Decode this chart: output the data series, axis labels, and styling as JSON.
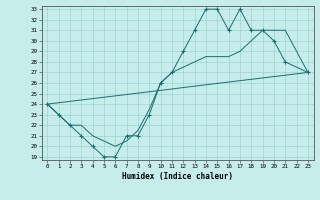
{
  "title": "",
  "xlabel": "Humidex (Indice chaleur)",
  "x_values": [
    0,
    1,
    2,
    3,
    4,
    5,
    6,
    7,
    8,
    9,
    10,
    11,
    12,
    13,
    14,
    15,
    16,
    17,
    18,
    19,
    20,
    21,
    22,
    23
  ],
  "y_main": [
    24,
    23,
    22,
    21,
    20,
    19,
    19,
    21,
    21,
    23,
    26,
    27,
    29,
    31,
    33,
    33,
    31,
    33,
    31,
    31,
    30,
    28,
    null,
    27
  ],
  "y_smooth": [
    24,
    23,
    22,
    22,
    21,
    20.5,
    20,
    20.5,
    21.5,
    23.5,
    26,
    27,
    27.5,
    28,
    28.5,
    28.5,
    28.5,
    29,
    30,
    31,
    31,
    31,
    null,
    27
  ],
  "y_diag": [
    24,
    24.13,
    24.26,
    24.39,
    24.52,
    24.65,
    24.78,
    24.91,
    25.04,
    25.17,
    25.3,
    25.43,
    25.57,
    25.7,
    25.83,
    25.96,
    26.09,
    26.22,
    26.35,
    26.48,
    26.61,
    26.74,
    26.87,
    27
  ],
  "ylim": [
    19,
    33
  ],
  "xlim": [
    -0.5,
    23.5
  ],
  "yticks": [
    19,
    20,
    21,
    22,
    23,
    24,
    25,
    26,
    27,
    28,
    29,
    30,
    31,
    32,
    33
  ],
  "xticks": [
    0,
    1,
    2,
    3,
    4,
    5,
    6,
    7,
    8,
    9,
    10,
    11,
    12,
    13,
    14,
    15,
    16,
    17,
    18,
    19,
    20,
    21,
    22,
    23
  ],
  "bg_color": "#c6ecec",
  "grid_color": "#9ed4d4",
  "line_color": "#1a6e6e"
}
